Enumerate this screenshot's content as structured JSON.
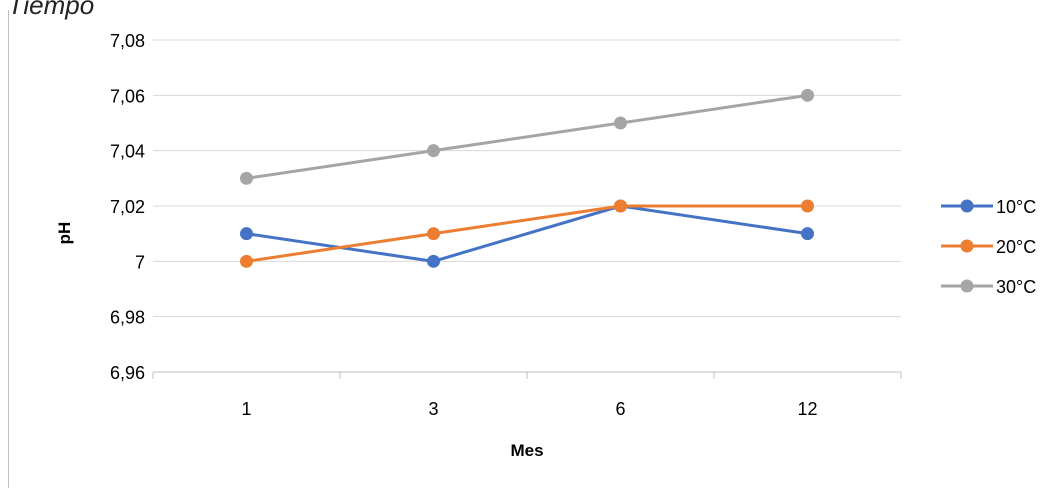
{
  "top_label": "e Tiempo",
  "chart_data": {
    "type": "line",
    "categories": [
      "1",
      "3",
      "6",
      "12"
    ],
    "series": [
      {
        "name": "10°C",
        "values": [
          7.01,
          7.0,
          7.02,
          7.01
        ],
        "color": "#4472C4"
      },
      {
        "name": "20°C",
        "values": [
          7.0,
          7.01,
          7.02,
          7.02
        ],
        "color": "#ED7D31"
      },
      {
        "name": "30°C",
        "values": [
          7.03,
          7.04,
          7.05,
          7.06
        ],
        "color": "#A5A5A5"
      }
    ],
    "xlabel": "Mes",
    "ylabel": "pH",
    "ylim": [
      6.96,
      7.08
    ],
    "yticks": [
      "6,96",
      "6,98",
      "7",
      "7,02",
      "7,04",
      "7,06",
      "7,08"
    ],
    "grid": true,
    "legend": "right",
    "colors": {
      "grid": "#d9d9d9",
      "axis": "#bfbfbf",
      "text": "#000000"
    }
  }
}
